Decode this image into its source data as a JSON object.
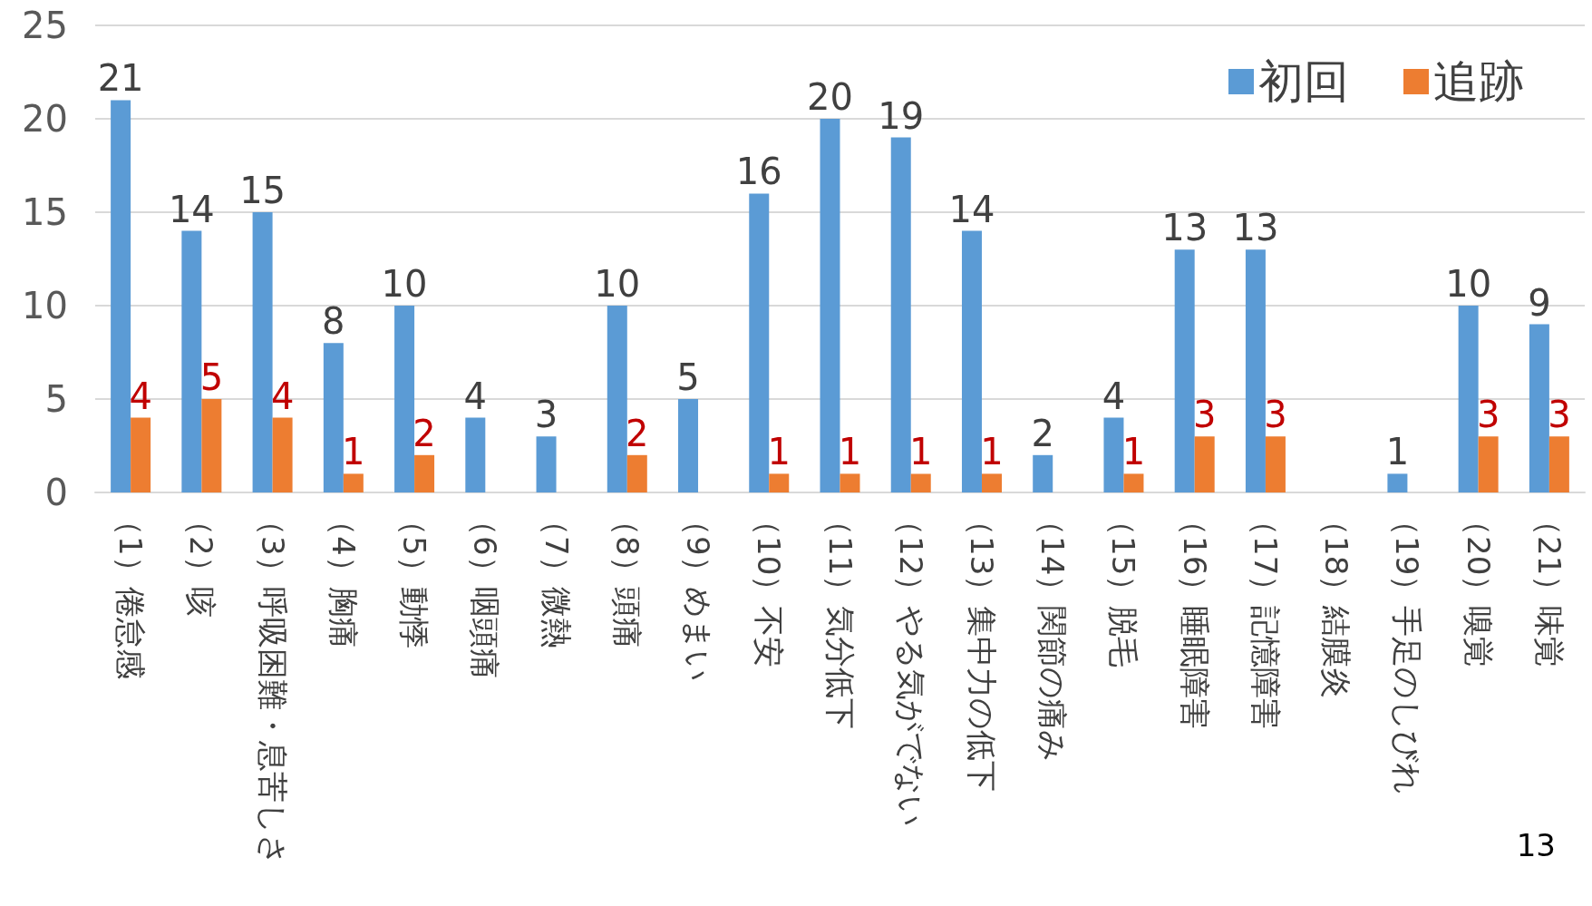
{
  "chart_data": {
    "type": "bar",
    "categories": [
      "（1）倦怠感",
      "（2）咳",
      "（3）呼吸困難・息苦しさ",
      "（4）胸痛",
      "（5）動悸",
      "（6）咽頭痛",
      "（7）微熱",
      "（8）頭痛",
      "（9）めまい",
      "（10）不安",
      "（11）気分低下",
      "（12）やる気がでない",
      "（13）集中力の低下",
      "（14）関節の痛み",
      "（15）脱毛",
      "（16）睡眠障害",
      "（17）記憶障害",
      "（18）結膜炎",
      "（19）手足のしびれ",
      "（20）嗅覚",
      "（21）味覚"
    ],
    "series": [
      {
        "name": "初回",
        "color": "#5b9bd5",
        "values": [
          21,
          14,
          15,
          8,
          10,
          4,
          3,
          10,
          5,
          16,
          20,
          19,
          14,
          2,
          4,
          13,
          13,
          null,
          1,
          10,
          9
        ]
      },
      {
        "name": "追跡",
        "color": "#ed7d31",
        "values": [
          4,
          5,
          4,
          1,
          2,
          null,
          null,
          2,
          null,
          1,
          1,
          1,
          1,
          null,
          1,
          3,
          3,
          null,
          null,
          3,
          3
        ]
      }
    ],
    "ylim": [
      0,
      25
    ],
    "yticks": [
      0,
      5,
      10,
      15,
      20,
      25
    ],
    "grid": "y",
    "legend": "top right",
    "data_labels": true,
    "annotations": [
      "13"
    ]
  }
}
